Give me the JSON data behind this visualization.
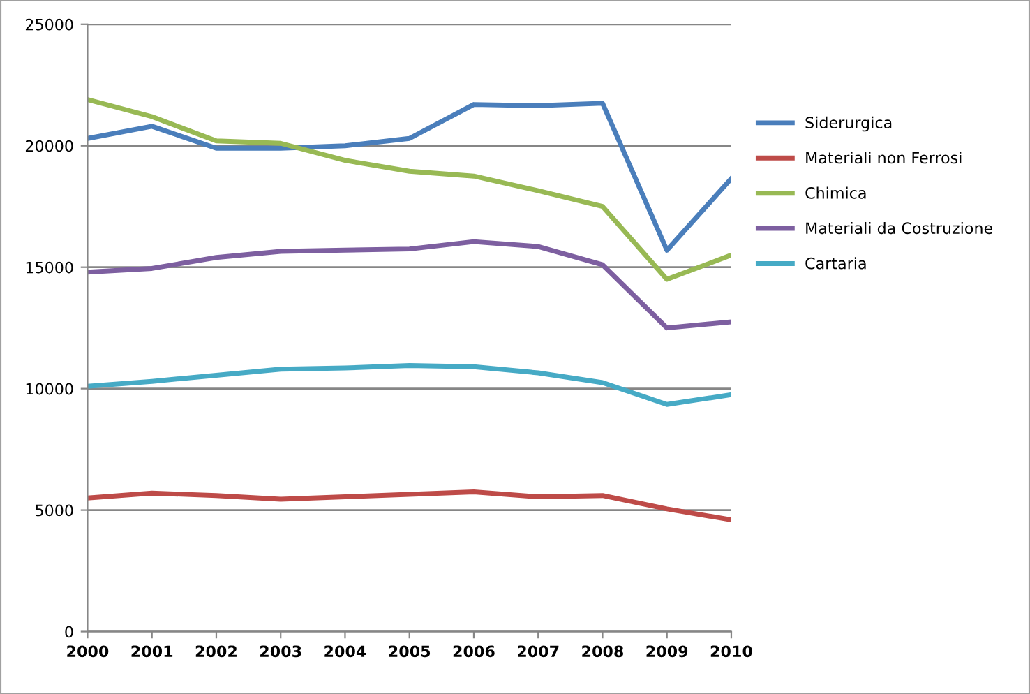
{
  "chart_data": {
    "type": "line",
    "x": [
      2000,
      2001,
      2002,
      2003,
      2004,
      2005,
      2006,
      2007,
      2008,
      2009,
      2010
    ],
    "xlim": [
      2000,
      2010
    ],
    "xticks": [
      2000,
      2001,
      2002,
      2003,
      2004,
      2005,
      2006,
      2007,
      2008,
      2009,
      2010
    ],
    "ylim": [
      0,
      25000
    ],
    "yticks": [
      0,
      5000,
      10000,
      15000,
      20000,
      25000
    ],
    "grid": "y",
    "legend": "right",
    "marker": "none",
    "line_style": "solid",
    "series": [
      {
        "name": "Siderurgica",
        "color": "#4a7ebb",
        "values": [
          20300,
          20800,
          19900,
          19900,
          20000,
          20300,
          21700,
          21650,
          21750,
          15700,
          18650
        ]
      },
      {
        "name": "Materiali non Ferrosi",
        "color": "#be4b48",
        "values": [
          5500,
          5700,
          5600,
          5450,
          5550,
          5650,
          5750,
          5550,
          5600,
          5050,
          4600
        ]
      },
      {
        "name": "Chimica",
        "color": "#98b954",
        "values": [
          21900,
          21200,
          20200,
          20100,
          19400,
          18950,
          18750,
          18150,
          17500,
          14500,
          15500
        ]
      },
      {
        "name": "Materiali da Costruzione",
        "color": "#7d5fa0",
        "values": [
          14800,
          14950,
          15400,
          15650,
          15700,
          15750,
          16050,
          15850,
          15100,
          12500,
          12750
        ]
      },
      {
        "name": "Cartaria",
        "color": "#46aac5",
        "values": [
          10100,
          10300,
          10550,
          10800,
          10850,
          10950,
          10900,
          10650,
          10250,
          9350,
          9750
        ]
      }
    ]
  }
}
